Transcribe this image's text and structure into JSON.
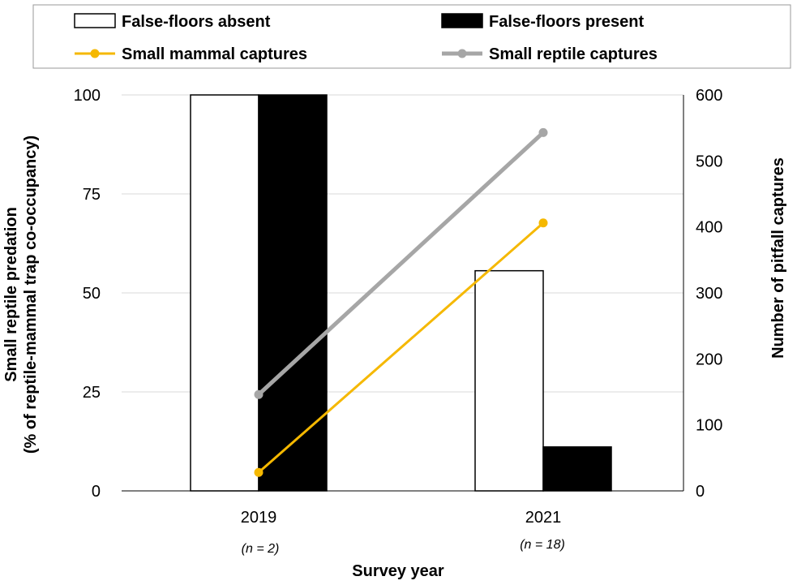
{
  "chart_data": {
    "type": "bar",
    "categories": [
      "2019",
      "2021"
    ],
    "category_notes": [
      "(n = 2)",
      "(n = 18)"
    ],
    "xlabel": "Survey year",
    "ylabel_lines": [
      "Small reptile predation",
      "(% of reptile-mammal trap co-occupancy)"
    ],
    "y2label": "Number of pitfall captures",
    "ylim": [
      0,
      100
    ],
    "y2lim": [
      0,
      600
    ],
    "yticks": [
      "0",
      "25",
      "50",
      "75",
      "100"
    ],
    "y2ticks": [
      "0",
      "100",
      "200",
      "300",
      "400",
      "500",
      "600"
    ],
    "grid": true,
    "legend_position": "top",
    "series": [
      {
        "name": "False-floors absent",
        "kind": "bar",
        "axis": "left",
        "values": [
          100,
          55.6
        ],
        "color": "#ffffff",
        "stroke": "#000000"
      },
      {
        "name": "False-floors present",
        "kind": "bar",
        "axis": "left",
        "values": [
          100,
          11.1
        ],
        "color": "#000000",
        "stroke": "#000000"
      },
      {
        "name": "Small mammal captures",
        "kind": "line",
        "axis": "right",
        "values": [
          28,
          406
        ],
        "color": "#f5b800"
      },
      {
        "name": "Small reptile captures",
        "kind": "line",
        "axis": "right",
        "values": [
          146,
          543
        ],
        "color": "#a6a6a6"
      }
    ]
  }
}
